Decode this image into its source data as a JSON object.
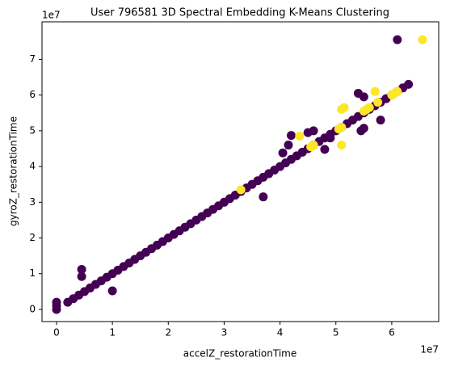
{
  "chart_data": {
    "type": "scatter",
    "title": "User 796581 3D Spectral Embedding K-Means Clustering",
    "xlabel": "accelZ_restorationTime",
    "ylabel": "gyroZ_restorationTime",
    "x_offset_label": "1e7",
    "y_offset_label": "1e7",
    "xlim": [
      -0.26,
      6.84
    ],
    "ylim": [
      -0.34,
      8.05
    ],
    "xticks": [
      0,
      1,
      2,
      3,
      4,
      5,
      6
    ],
    "yticks": [
      0,
      1,
      2,
      3,
      4,
      5,
      6,
      7
    ],
    "grid": false,
    "series": [
      {
        "color": "#440154",
        "x": [
          0,
          0,
          0,
          0.2,
          0.3,
          0.4,
          0.5,
          0.6,
          0.7,
          0.8,
          0.9,
          1.0,
          1.1,
          1.2,
          1.3,
          1.4,
          1.5,
          1.6,
          1.7,
          1.8,
          1.9,
          2.0,
          2.1,
          2.2,
          2.3,
          2.4,
          2.5,
          2.6,
          2.7,
          2.8,
          2.9,
          3.0,
          3.1,
          3.2,
          3.3,
          3.4,
          3.5,
          3.6,
          3.7,
          3.8,
          3.9,
          4.0,
          4.1,
          4.2,
          4.3,
          4.4,
          4.5,
          4.6,
          4.7,
          4.8,
          4.9,
          5.0,
          5.1,
          5.2,
          5.3,
          5.4,
          5.5,
          5.6,
          5.7,
          5.8,
          5.9,
          6.0,
          6.1,
          6.2,
          6.3,
          0.45,
          0.45,
          1.0,
          3.7,
          4.2,
          4.15,
          4.05,
          4.5,
          4.6,
          4.8,
          5.4,
          5.5,
          5.5,
          5.45,
          5.8,
          6.1,
          4.9
        ],
        "y": [
          0,
          0.2,
          0.1,
          0.2,
          0.3,
          0.4,
          0.5,
          0.6,
          0.7,
          0.8,
          0.9,
          1.0,
          1.1,
          1.2,
          1.3,
          1.4,
          1.5,
          1.6,
          1.7,
          1.8,
          1.9,
          2.0,
          2.1,
          2.2,
          2.3,
          2.4,
          2.5,
          2.6,
          2.7,
          2.8,
          2.9,
          3.0,
          3.1,
          3.2,
          3.3,
          3.4,
          3.5,
          3.6,
          3.7,
          3.8,
          3.9,
          4.0,
          4.1,
          4.2,
          4.3,
          4.4,
          4.5,
          4.6,
          4.7,
          4.8,
          4.9,
          5.0,
          5.1,
          5.2,
          5.3,
          5.4,
          5.5,
          5.6,
          5.7,
          5.8,
          5.9,
          6.0,
          6.1,
          6.2,
          6.3,
          1.12,
          0.92,
          0.52,
          3.15,
          4.87,
          4.6,
          4.38,
          4.95,
          5.0,
          4.48,
          6.05,
          5.95,
          5.07,
          5.0,
          5.3,
          7.55,
          4.8
        ]
      },
      {
        "color": "#fde725",
        "x": [
          6.55,
          5.1,
          5.15,
          5.05,
          5.1,
          5.1,
          4.6,
          4.35,
          5.7,
          5.75,
          5.6,
          5.5,
          5.55,
          6.05,
          6.1,
          6.0,
          4.55,
          3.3
        ],
        "y": [
          7.55,
          5.6,
          5.65,
          5.05,
          5.1,
          4.6,
          4.6,
          4.85,
          6.1,
          5.8,
          5.65,
          5.55,
          5.6,
          6.05,
          6.1,
          6.0,
          4.55,
          3.35
        ]
      }
    ]
  }
}
